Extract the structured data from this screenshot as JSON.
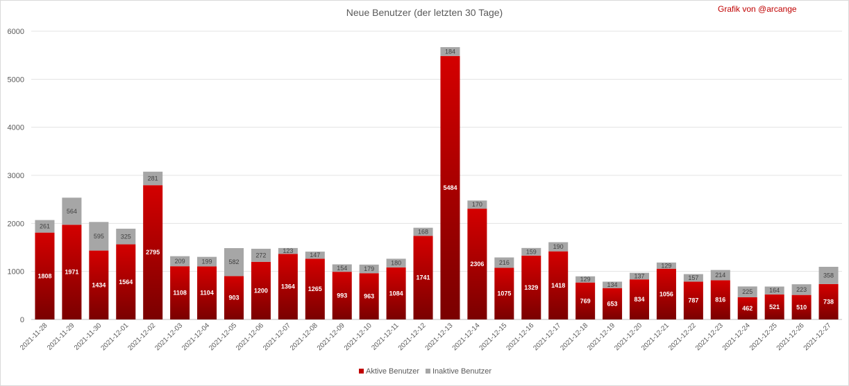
{
  "chart_data": {
    "type": "bar",
    "stacked": true,
    "title": "Neue Benutzer (der letzten 30 Tage)",
    "annotation": "Grafik von @arcange",
    "ylim": [
      0,
      6000
    ],
    "yticks": [
      0,
      1000,
      2000,
      3000,
      4000,
      5000,
      6000
    ],
    "grid": true,
    "legend_position": "bottom",
    "categories": [
      "2021-11-28",
      "2021-11-29",
      "2021-11-30",
      "2021-12-01",
      "2021-12-02",
      "2021-12-03",
      "2021-12-04",
      "2021-12-05",
      "2021-12-06",
      "2021-12-07",
      "2021-12-08",
      "2021-12-09",
      "2021-12-10",
      "2021-12-11",
      "2021-12-12",
      "2021-12-13",
      "2021-12-14",
      "2021-12-15",
      "2021-12-16",
      "2021-12-17",
      "2021-12-18",
      "2021-12-19",
      "2021-12-20",
      "2021-12-21",
      "2021-12-22",
      "2021-12-23",
      "2021-12-24",
      "2021-12-25",
      "2021-12-26",
      "2021-12-27"
    ],
    "series": [
      {
        "name": "Aktive Benutzer",
        "color": "#c00000",
        "values": [
          1808,
          1971,
          1434,
          1564,
          2795,
          1108,
          1104,
          903,
          1200,
          1364,
          1265,
          993,
          963,
          1084,
          1741,
          5484,
          2306,
          1075,
          1329,
          1418,
          769,
          653,
          834,
          1056,
          787,
          816,
          462,
          521,
          510,
          738
        ]
      },
      {
        "name": "Inaktive Benutzer",
        "color": "#a6a6a6",
        "values": [
          261,
          564,
          595,
          325,
          281,
          209,
          199,
          582,
          272,
          123,
          147,
          154,
          179,
          180,
          168,
          184,
          170,
          216,
          159,
          190,
          129,
          134,
          137,
          129,
          157,
          214,
          225,
          164,
          223,
          358
        ]
      }
    ]
  }
}
